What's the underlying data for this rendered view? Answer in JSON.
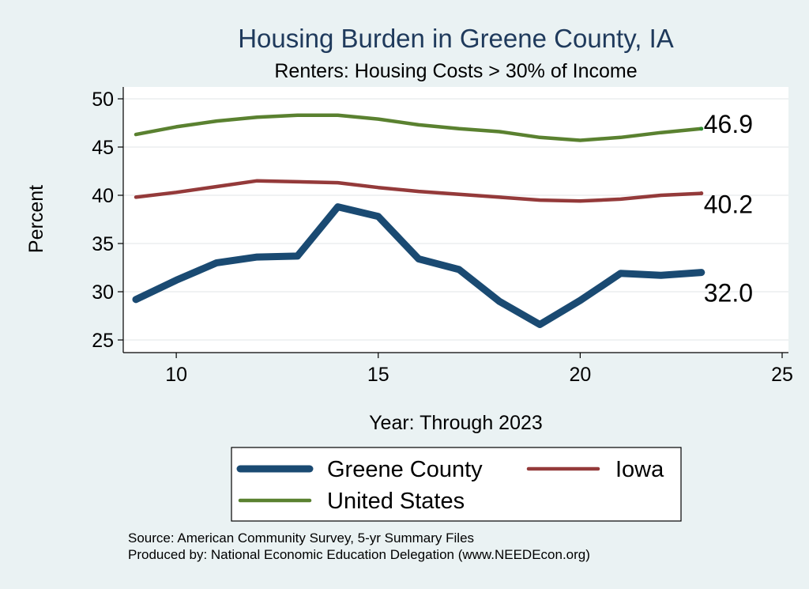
{
  "chart_data": {
    "type": "line",
    "title": "Housing Burden in Greene County, IA",
    "subtitle": "Renters: Housing Costs > 30% of Income",
    "xlabel": "Year: Through 2023",
    "ylabel": "Percent",
    "xlim": [
      9,
      25
    ],
    "ylim": [
      25,
      50
    ],
    "xticks": [
      10,
      15,
      20,
      25
    ],
    "yticks": [
      25,
      30,
      35,
      40,
      45,
      50
    ],
    "grid": true,
    "legend_position": "bottom",
    "x": [
      9,
      10,
      11,
      12,
      13,
      14,
      15,
      16,
      17,
      18,
      19,
      20,
      21,
      22,
      23
    ],
    "series": [
      {
        "name": "Greene County",
        "color": "#1a4a72",
        "end_label": "32.0",
        "values": [
          29.2,
          31.2,
          33.0,
          33.6,
          33.7,
          38.8,
          37.8,
          33.4,
          32.3,
          29.0,
          26.6,
          29.1,
          31.9,
          31.7,
          32.0
        ]
      },
      {
        "name": "Iowa",
        "color": "#943a3a",
        "end_label": "40.2",
        "values": [
          39.8,
          40.3,
          40.9,
          41.5,
          41.4,
          41.3,
          40.8,
          40.4,
          40.1,
          39.8,
          39.5,
          39.4,
          39.6,
          40.0,
          40.2
        ]
      },
      {
        "name": "United States",
        "color": "#5a8130",
        "end_label": "46.9",
        "values": [
          46.3,
          47.1,
          47.7,
          48.1,
          48.3,
          48.3,
          47.9,
          47.3,
          46.9,
          46.6,
          46.0,
          45.7,
          46.0,
          46.5,
          46.9
        ]
      }
    ]
  },
  "source_lines": [
    "Source: American Community Survey, 5-yr Summary Files",
    "Produced by: National Economic Education Delegation (www.NEEDEcon.org)"
  ]
}
